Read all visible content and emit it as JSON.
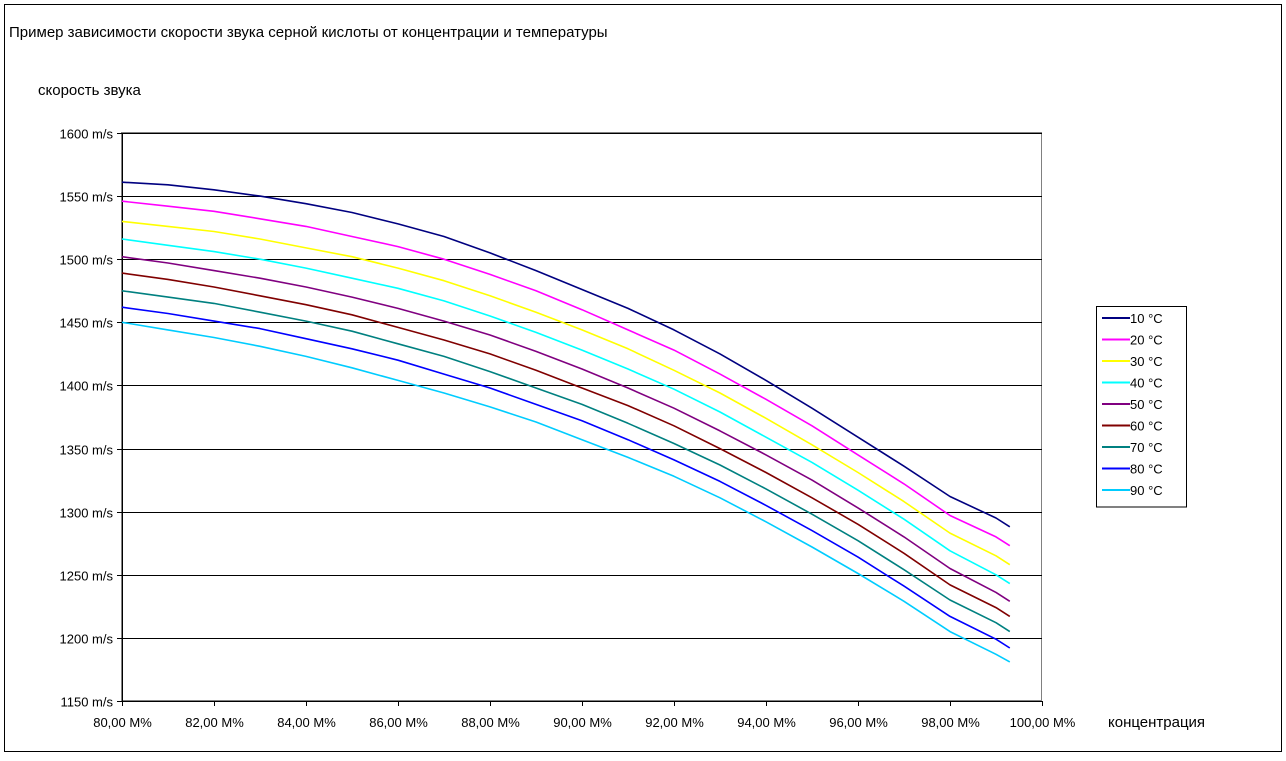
{
  "chart_data": {
    "type": "line",
    "title": "Пример зависимости скорости звука серной кислоты от концентрации и температуры",
    "ylabel": "скорость звука",
    "xlabel": "концентрация",
    "xlim": [
      80,
      100
    ],
    "ylim": [
      1150,
      1600
    ],
    "x_ticks": [
      80,
      82,
      84,
      86,
      88,
      90,
      92,
      94,
      96,
      98,
      100
    ],
    "x_tick_labels": [
      "80,00 M%",
      "82,00 M%",
      "84,00 M%",
      "86,00 M%",
      "88,00 M%",
      "90,00 M%",
      "92,00 M%",
      "94,00 M%",
      "96,00 M%",
      "98,00 M%",
      "100,00 M%"
    ],
    "y_ticks": [
      1150,
      1200,
      1250,
      1300,
      1350,
      1400,
      1450,
      1500,
      1550,
      1600
    ],
    "y_tick_labels": [
      "1150 m/s",
      "1200 m/s",
      "1250 m/s",
      "1300 m/s",
      "1350 m/s",
      "1400 m/s",
      "1450 m/s",
      "1500 m/s",
      "1550 m/s",
      "1600 m/s"
    ],
    "grid": "horizontal",
    "legend_position": "right",
    "x": [
      80,
      81,
      82,
      83,
      84,
      85,
      86,
      87,
      88,
      89,
      90,
      91,
      92,
      93,
      94,
      95,
      96,
      97,
      98,
      99,
      99.3
    ],
    "series": [
      {
        "name": "10 °C",
        "color": "#000080",
        "values": [
          1561,
          1559,
          1555,
          1550,
          1544,
          1537,
          1528,
          1518,
          1505,
          1491,
          1476,
          1461,
          1444,
          1425,
          1404,
          1382,
          1359,
          1336,
          1312,
          1295,
          1288
        ]
      },
      {
        "name": "20 °C",
        "color": "#ff00ff",
        "values": [
          1546,
          1542,
          1538,
          1532,
          1526,
          1518,
          1510,
          1500,
          1488,
          1475,
          1460,
          1444,
          1428,
          1409,
          1389,
          1368,
          1345,
          1322,
          1297,
          1280,
          1273
        ]
      },
      {
        "name": "30 °C",
        "color": "#ffff00",
        "values": [
          1530,
          1526,
          1522,
          1516,
          1509,
          1502,
          1493,
          1483,
          1471,
          1458,
          1444,
          1429,
          1412,
          1394,
          1374,
          1353,
          1331,
          1308,
          1283,
          1265,
          1258
        ]
      },
      {
        "name": "40 °C",
        "color": "#00ffff",
        "values": [
          1516,
          1511,
          1506,
          1500,
          1493,
          1485,
          1477,
          1467,
          1455,
          1442,
          1428,
          1413,
          1397,
          1379,
          1359,
          1339,
          1317,
          1294,
          1269,
          1250,
          1243
        ]
      },
      {
        "name": "50 °C",
        "color": "#800080",
        "values": [
          1502,
          1497,
          1491,
          1485,
          1478,
          1470,
          1461,
          1451,
          1440,
          1427,
          1413,
          1398,
          1382,
          1364,
          1345,
          1325,
          1303,
          1280,
          1255,
          1236,
          1229
        ]
      },
      {
        "name": "60 °C",
        "color": "#800000",
        "values": [
          1489,
          1484,
          1478,
          1471,
          1464,
          1456,
          1446,
          1436,
          1425,
          1412,
          1398,
          1384,
          1368,
          1350,
          1331,
          1311,
          1290,
          1267,
          1242,
          1224,
          1217
        ]
      },
      {
        "name": "70 °C",
        "color": "#008080",
        "values": [
          1475,
          1470,
          1465,
          1458,
          1451,
          1443,
          1433,
          1423,
          1411,
          1398,
          1385,
          1370,
          1354,
          1337,
          1318,
          1298,
          1277,
          1254,
          1230,
          1212,
          1205
        ]
      },
      {
        "name": "80 °C",
        "color": "#0000ff",
        "values": [
          1462,
          1457,
          1451,
          1445,
          1437,
          1429,
          1420,
          1409,
          1398,
          1385,
          1372,
          1357,
          1341,
          1324,
          1305,
          1285,
          1264,
          1241,
          1217,
          1199,
          1192
        ]
      },
      {
        "name": "90 °C",
        "color": "#00ccff",
        "values": [
          1450,
          1444,
          1438,
          1431,
          1423,
          1414,
          1404,
          1394,
          1383,
          1371,
          1357,
          1343,
          1328,
          1311,
          1292,
          1272,
          1251,
          1229,
          1205,
          1187,
          1181
        ]
      }
    ]
  }
}
